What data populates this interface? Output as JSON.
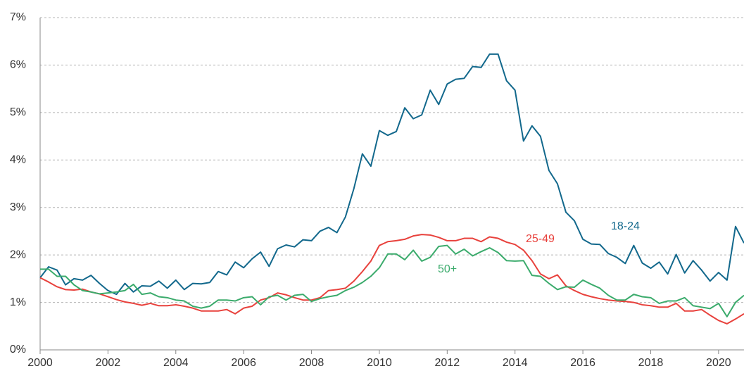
{
  "chart_data": {
    "type": "line",
    "x": [
      2000,
      2000.25,
      2000.5,
      2000.75,
      2001,
      2001.25,
      2001.5,
      2001.75,
      2002,
      2002.25,
      2002.5,
      2002.75,
      2003,
      2003.25,
      2003.5,
      2003.75,
      2004,
      2004.25,
      2004.5,
      2004.75,
      2005,
      2005.25,
      2005.5,
      2005.75,
      2006,
      2006.25,
      2006.5,
      2006.75,
      2007,
      2007.25,
      2007.5,
      2007.75,
      2008,
      2008.25,
      2008.5,
      2008.75,
      2009,
      2009.25,
      2009.5,
      2009.75,
      2010,
      2010.25,
      2010.5,
      2010.75,
      2011,
      2011.25,
      2011.5,
      2011.75,
      2012,
      2012.25,
      2012.5,
      2012.75,
      2013,
      2013.25,
      2013.5,
      2013.75,
      2014,
      2014.25,
      2014.5,
      2014.75,
      2015,
      2015.25,
      2015.5,
      2015.75,
      2016,
      2016.25,
      2016.5,
      2016.75,
      2017,
      2017.25,
      2017.5,
      2017.75,
      2018,
      2018.25,
      2018.5,
      2018.75,
      2019,
      2019.25,
      2019.5,
      2019.75,
      2020,
      2020.25,
      2020.5,
      2020.75
    ],
    "series": [
      {
        "name": "18-24",
        "color": "#12688c",
        "values": [
          1.52,
          1.75,
          1.68,
          1.37,
          1.5,
          1.47,
          1.57,
          1.4,
          1.25,
          1.17,
          1.4,
          1.22,
          1.35,
          1.34,
          1.45,
          1.3,
          1.47,
          1.27,
          1.4,
          1.39,
          1.42,
          1.65,
          1.58,
          1.85,
          1.73,
          1.92,
          2.06,
          1.76,
          2.13,
          2.21,
          2.17,
          2.32,
          2.3,
          2.5,
          2.58,
          2.47,
          2.8,
          3.4,
          4.13,
          3.87,
          4.62,
          4.52,
          4.6,
          5.1,
          4.87,
          4.95,
          5.47,
          5.17,
          5.6,
          5.7,
          5.72,
          5.97,
          5.95,
          6.23,
          6.23,
          5.67,
          5.47,
          4.4,
          4.72,
          4.5,
          3.78,
          3.5,
          2.9,
          2.72,
          2.33,
          2.23,
          2.22,
          2.03,
          1.95,
          1.82,
          2.2,
          1.83,
          1.72,
          1.85,
          1.6,
          2.01,
          1.62,
          1.88,
          1.68,
          1.45,
          1.63,
          1.47,
          2.6,
          2.25
        ]
      },
      {
        "name": "25-49",
        "color": "#e8413c",
        "values": [
          1.52,
          1.43,
          1.33,
          1.27,
          1.26,
          1.28,
          1.22,
          1.18,
          1.12,
          1.06,
          1.01,
          0.98,
          0.94,
          0.98,
          0.93,
          0.93,
          0.95,
          0.92,
          0.88,
          0.82,
          0.82,
          0.82,
          0.85,
          0.76,
          0.88,
          0.92,
          1.05,
          1.1,
          1.2,
          1.16,
          1.1,
          1.05,
          1.05,
          1.1,
          1.25,
          1.27,
          1.3,
          1.45,
          1.65,
          1.87,
          2.2,
          2.28,
          2.3,
          2.33,
          2.4,
          2.43,
          2.42,
          2.37,
          2.3,
          2.3,
          2.35,
          2.35,
          2.28,
          2.38,
          2.35,
          2.27,
          2.22,
          2.1,
          1.88,
          1.6,
          1.5,
          1.58,
          1.35,
          1.25,
          1.17,
          1.12,
          1.08,
          1.05,
          1.03,
          1.02,
          1.0,
          0.95,
          0.93,
          0.9,
          0.9,
          0.98,
          0.82,
          0.82,
          0.85,
          0.73,
          0.62,
          0.55,
          0.65,
          0.76
        ]
      },
      {
        "name": "50+",
        "color": "#3bab6c",
        "values": [
          1.7,
          1.7,
          1.55,
          1.55,
          1.37,
          1.25,
          1.22,
          1.18,
          1.2,
          1.22,
          1.25,
          1.38,
          1.17,
          1.2,
          1.12,
          1.1,
          1.05,
          1.03,
          0.92,
          0.88,
          0.92,
          1.05,
          1.05,
          1.03,
          1.1,
          1.12,
          0.95,
          1.12,
          1.15,
          1.05,
          1.15,
          1.17,
          1.02,
          1.08,
          1.12,
          1.15,
          1.25,
          1.32,
          1.42,
          1.55,
          1.73,
          2.02,
          2.02,
          1.9,
          2.1,
          1.87,
          1.95,
          2.18,
          2.2,
          2.02,
          2.12,
          1.98,
          2.07,
          2.15,
          2.05,
          1.88,
          1.87,
          1.88,
          1.57,
          1.55,
          1.4,
          1.27,
          1.33,
          1.32,
          1.47,
          1.38,
          1.3,
          1.15,
          1.05,
          1.05,
          1.17,
          1.12,
          1.1,
          0.98,
          1.03,
          1.03,
          1.1,
          0.93,
          0.9,
          0.87,
          0.98,
          0.7,
          1.0,
          1.15
        ]
      }
    ],
    "xlim": [
      2000,
      2020.75
    ],
    "xticks": [
      2000,
      2002,
      2004,
      2006,
      2008,
      2010,
      2012,
      2014,
      2016,
      2018,
      2020
    ],
    "ylim": [
      0,
      7
    ],
    "yticks": [
      {
        "value": 0,
        "label": "0%"
      },
      {
        "value": 1,
        "label": "1%"
      },
      {
        "value": 2,
        "label": "2%"
      },
      {
        "value": 3,
        "label": "3%"
      },
      {
        "value": 4,
        "label": "4%"
      },
      {
        "value": 5,
        "label": "5%"
      },
      {
        "value": 6,
        "label": "6%"
      },
      {
        "value": 7,
        "label": "7%"
      }
    ],
    "grid": true
  }
}
